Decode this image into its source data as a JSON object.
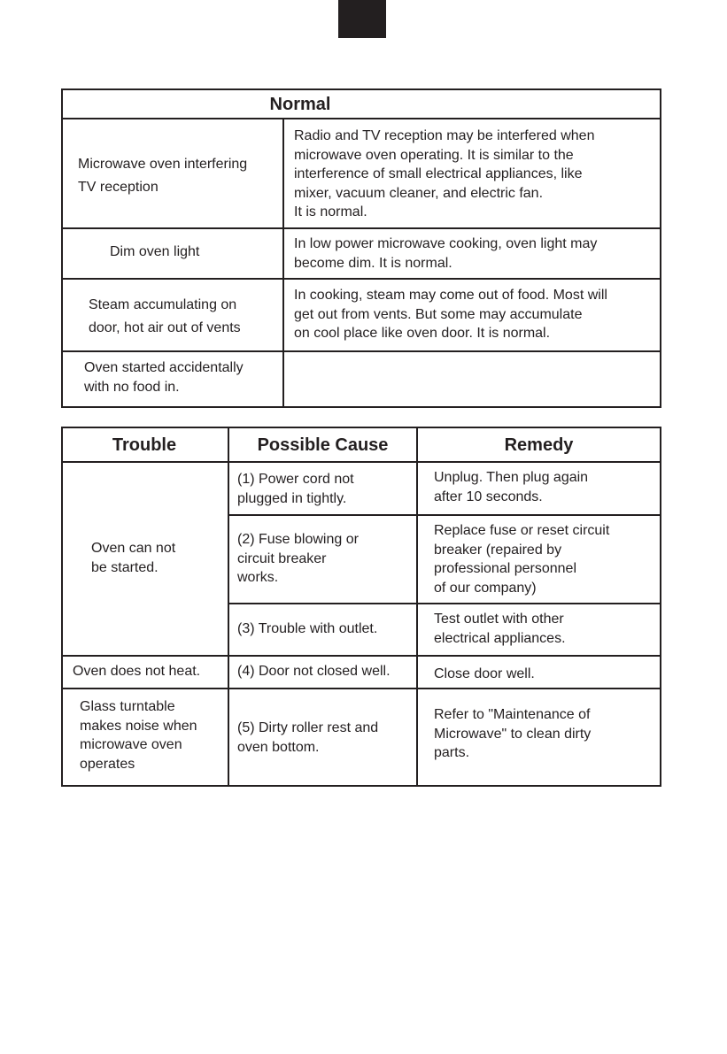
{
  "normal_table": {
    "title": "Normal",
    "rows": [
      {
        "situation": "Microwave oven interfering\nTV reception",
        "explanation": "Radio and TV reception may be interfered when\nmicrowave oven operating. It is similar to the\ninterference of small electrical appliances, like\nmixer, vacuum cleaner, and electric fan.\nIt is normal."
      },
      {
        "situation": "Dim oven light",
        "explanation": "In low power microwave cooking, oven light may\nbecome dim. It is normal."
      },
      {
        "situation": "Steam accumulating on\ndoor, hot air out of vents",
        "explanation": "In cooking, steam may come out of food. Most will\nget out from vents. But some may accumulate\non cool place like oven door. It is normal."
      },
      {
        "situation": "Oven started accidentally\nwith no food in.",
        "explanation": ""
      }
    ]
  },
  "trouble_table": {
    "headers": [
      "Trouble",
      "Possible Cause",
      "Remedy"
    ],
    "troubles": [
      "Oven can not\nbe started.",
      "Oven does not heat.",
      "Glass turntable\nmakes noise when\nmicrowave oven\noperates"
    ],
    "causes": [
      "(1) Power cord not\n      plugged in tightly.",
      "(2) Fuse blowing or\n      circuit breaker\n      works.",
      "(3) Trouble with outlet.",
      "(4) Door not closed well.",
      "(5) Dirty roller rest and\n      oven bottom."
    ],
    "remedies": [
      "Unplug. Then plug again\nafter 10 seconds.",
      "Replace fuse or reset circuit\nbreaker (repaired by\nprofessional personnel\nof our company)",
      "Test outlet with other\nelectrical appliances.",
      "Close door well.",
      "Refer to \"Maintenance of\nMicrowave\" to clean dirty\nparts."
    ]
  }
}
